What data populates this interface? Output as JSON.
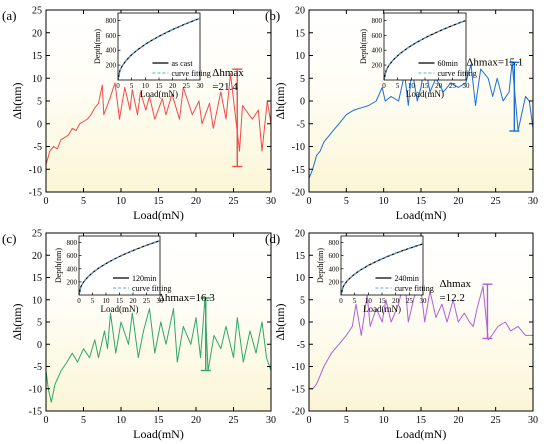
{
  "figure": {
    "domain": "Chart",
    "n_panels": 4
  },
  "chart_data": [
    {
      "type": "line",
      "panel_label": "(a)",
      "xlabel": "Load(mN)",
      "ylabel": "Δh(nm)",
      "xlim": [
        0,
        30
      ],
      "ylim": [
        -15,
        25
      ],
      "xticks": [
        0,
        5,
        10,
        15,
        20,
        25,
        30
      ],
      "yticks": [
        -15,
        -10,
        -5,
        0,
        5,
        10,
        15,
        20,
        25
      ],
      "series": [
        {
          "name": "",
          "color": "#ef4b4b",
          "x": [
            0,
            0.5,
            1,
            1.5,
            2,
            2.5,
            3,
            3.5,
            4,
            4.5,
            5,
            5.5,
            6,
            6.5,
            7,
            7.5,
            7.7,
            8.5,
            9.2,
            9.8,
            10.5,
            11.2,
            11.5,
            12.2,
            12.6,
            13.3,
            13.8,
            14.5,
            15.5,
            16.0,
            16.8,
            17.8,
            18.3,
            19.5,
            20.4,
            20.8,
            21.8,
            22.3,
            23.3,
            24.0,
            24.6,
            25.8,
            26.2,
            27.5,
            28.3,
            28.8,
            29.5,
            30
          ],
          "y": [
            -9,
            -6,
            -5,
            -5.5,
            -3.5,
            -3,
            -2.5,
            -1,
            -1.5,
            0,
            0.5,
            1,
            2,
            3.5,
            4.5,
            8.5,
            2,
            5.5,
            9,
            1,
            8,
            3,
            7.5,
            2,
            7,
            3,
            6,
            1,
            5.5,
            2,
            6.5,
            1,
            8,
            2,
            5,
            0,
            4.5,
            -1,
            7,
            1,
            11,
            -6,
            4,
            1,
            3,
            -6,
            5,
            0
          ]
        }
      ],
      "annotation": {
        "label": "Δhmax",
        "value_text": "=21.4",
        "x": 25.5,
        "y_top": 12,
        "y_bottom": -9.4
      },
      "inset": {
        "xlabel": "Load(mN)",
        "ylabel": "Depth(nm)",
        "xlim": [
          0,
          30
        ],
        "ylim": [
          0,
          900
        ],
        "xticks": [
          0,
          5,
          10,
          15,
          20,
          25,
          30
        ],
        "yticks": [
          200,
          400,
          600,
          800
        ],
        "legend": [
          "as cast",
          "curve fitting"
        ],
        "depth_at_30": 830
      }
    },
    {
      "type": "line",
      "panel_label": "(b)",
      "xlabel": "Load(mN)",
      "ylabel": "Δh(nm)",
      "xlim": [
        0,
        30
      ],
      "ylim": [
        -20,
        20
      ],
      "xticks": [
        0,
        5,
        10,
        15,
        20,
        25,
        30
      ],
      "yticks": [
        -20,
        -15,
        -10,
        -5,
        0,
        5,
        10,
        15,
        20
      ],
      "series": [
        {
          "name": "",
          "color": "#1a6fd4",
          "x": [
            0,
            0.5,
            1,
            1.5,
            2,
            3,
            4,
            5,
            6,
            7,
            8,
            9,
            9.8,
            10.2,
            11,
            12,
            12.8,
            13.3,
            13.8,
            14.5,
            15,
            15.5,
            16.2,
            17,
            18,
            19,
            20,
            21,
            21.7,
            22.3,
            23,
            24,
            24.6,
            25.2,
            26,
            26.8,
            27.2,
            28,
            29,
            29.5,
            30
          ],
          "y": [
            -17,
            -15,
            -12,
            -11,
            -9,
            -7,
            -5,
            -3,
            -2,
            -1.5,
            -1,
            0,
            3,
            0,
            1,
            0,
            6,
            -1,
            7,
            0,
            3,
            8,
            2,
            5,
            2,
            4,
            3,
            4,
            8,
            -1,
            7,
            5,
            1,
            5,
            0,
            2,
            8.5,
            -6.5,
            1,
            0,
            -6
          ]
        }
      ],
      "annotation": {
        "label": "Δhmax",
        "value_text": "=15.1",
        "x": 27.5,
        "y_top": 8.5,
        "y_bottom": -6.6
      },
      "inset": {
        "xlabel": "Load(mN)",
        "ylabel": "Depth(nm)",
        "xlim": [
          0,
          30
        ],
        "ylim": [
          0,
          900
        ],
        "xticks": [
          0,
          5,
          10,
          15,
          20,
          25,
          30
        ],
        "yticks": [
          200,
          400,
          600,
          800
        ],
        "legend": [
          "60min",
          "curve fitting"
        ],
        "depth_at_30": 800
      }
    },
    {
      "type": "line",
      "panel_label": "(c)",
      "xlabel": "Load(mN)",
      "ylabel": "Δh(nm)",
      "xlim": [
        0,
        30
      ],
      "ylim": [
        -15,
        25
      ],
      "xticks": [
        0,
        5,
        10,
        15,
        20,
        25,
        30
      ],
      "yticks": [
        -15,
        -10,
        -5,
        0,
        5,
        10,
        15,
        20,
        25
      ],
      "series": [
        {
          "name": "",
          "color": "#2ea66a",
          "x": [
            0,
            0.3,
            0.7,
            1.2,
            2,
            2.8,
            3.5,
            4.2,
            5,
            5.8,
            6.5,
            7,
            7.8,
            8.2,
            8.6,
            9.3,
            10,
            11,
            11.5,
            12.3,
            13,
            13.8,
            14.5,
            15.3,
            16,
            17,
            17.5,
            18.3,
            19.3,
            20,
            20.6,
            21.2,
            21.6,
            22.4,
            23.3,
            24,
            25,
            25.5,
            26.3,
            27.2,
            28,
            28.8,
            29.4,
            30
          ],
          "y": [
            -6,
            -10,
            -13,
            -9,
            -6,
            -4,
            -2,
            -4,
            -1,
            -3,
            1,
            -3,
            3,
            -1,
            7,
            -2,
            5,
            0,
            7,
            -3,
            3,
            8,
            -2,
            5,
            0,
            8,
            -4,
            4,
            0,
            6,
            -3,
            10.5,
            -6,
            2,
            -1,
            4,
            -3,
            6,
            -4,
            3,
            -2,
            5,
            -3,
            -6
          ]
        }
      ],
      "annotation": {
        "label": "Δhmax",
        "value_text": "=16.3",
        "x": 21.3,
        "y_top": 10.4,
        "y_bottom": -5.9
      },
      "inset": {
        "xlabel": "Load(mN)",
        "ylabel": "Depth(nm)",
        "xlim": [
          0,
          30
        ],
        "ylim": [
          0,
          900
        ],
        "xticks": [
          0,
          5,
          10,
          15,
          20,
          25,
          30
        ],
        "yticks": [
          200,
          400,
          600,
          800
        ],
        "legend": [
          "120min",
          "curve fitting"
        ],
        "depth_at_30": 830
      }
    },
    {
      "type": "line",
      "panel_label": "(d)",
      "xlabel": "Load(mN)",
      "ylabel": "Δh(nm)",
      "xlim": [
        0,
        30
      ],
      "ylim": [
        -20,
        20
      ],
      "xticks": [
        0,
        5,
        10,
        15,
        20,
        25,
        30
      ],
      "yticks": [
        -20,
        -15,
        -10,
        -5,
        0,
        5,
        10,
        15,
        20
      ],
      "series": [
        {
          "name": "",
          "color": "#b05fd9",
          "x": [
            0,
            0.5,
            1,
            1.5,
            2,
            3,
            4,
            5,
            5.8,
            6.3,
            7,
            7.8,
            8.2,
            9,
            9.8,
            10.3,
            11,
            12,
            12.8,
            13.3,
            14,
            14.8,
            15.5,
            16.2,
            17,
            17.8,
            18.5,
            19.3,
            20,
            20.8,
            21.5,
            22,
            22.5,
            23.3,
            24,
            24.5,
            25.3,
            26.3,
            27,
            28,
            29,
            30
          ],
          "y": [
            -15,
            -15,
            -14,
            -12,
            -10,
            -7,
            -5,
            -3,
            -1,
            4,
            -3,
            6,
            -1,
            3,
            0,
            5,
            0,
            4,
            10,
            0,
            5,
            10,
            0,
            7,
            1,
            4,
            0,
            5,
            0,
            2,
            0,
            -1,
            3,
            8,
            -4,
            -3,
            -1,
            0,
            -2,
            -1,
            -3,
            -3
          ]
        }
      ],
      "annotation": {
        "label": "Δhmax",
        "value_text": "=12.2",
        "x": 23.9,
        "y_top": 8.5,
        "y_bottom": -3.7
      },
      "inset": {
        "xlabel": "Load(mN)",
        "ylabel": "Depth(nm)",
        "xlim": [
          0,
          30
        ],
        "ylim": [
          0,
          900
        ],
        "xticks": [
          0,
          5,
          10,
          15,
          20,
          25,
          30
        ],
        "yticks": [
          200,
          400,
          600,
          800
        ],
        "legend": [
          "240min",
          "curve fitting"
        ],
        "depth_at_30": 780
      }
    }
  ]
}
